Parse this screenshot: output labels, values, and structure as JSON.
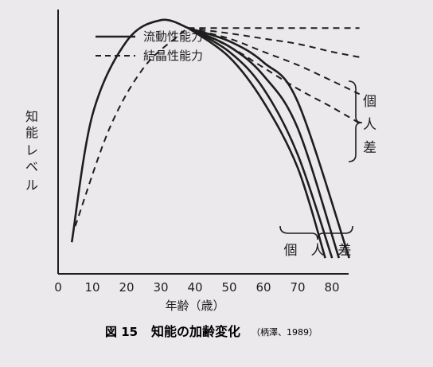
{
  "chart_data": {
    "type": "line",
    "title": "",
    "xlabel": "年齢（歳）",
    "ylabel": [
      "知",
      "能",
      "レ",
      "ベ",
      "ル"
    ],
    "xlim": [
      0,
      90
    ],
    "ylim": [
      0,
      100
    ],
    "x_ticks": [
      "0",
      "10",
      "20",
      "30",
      "40",
      "50",
      "60",
      "70",
      "80"
    ],
    "grid": false,
    "legend_placement": "top-left",
    "series": [
      {
        "name": "流動性能力",
        "style": "solid",
        "x": [
          4,
          10,
          20,
          30,
          38
        ],
        "y": [
          12,
          60,
          88,
          96,
          93
        ]
      },
      {
        "name": "結晶性能力",
        "style": "dashed",
        "x": [
          5,
          15,
          25,
          35,
          38
        ],
        "y": [
          18,
          55,
          78,
          90,
          93
        ]
      }
    ],
    "solid_branches": [
      {
        "x": [
          38,
          50,
          60,
          70,
          78
        ],
        "y": [
          93,
          82,
          65,
          40,
          6
        ]
      },
      {
        "x": [
          38,
          50,
          60,
          70,
          80
        ],
        "y": [
          93,
          84,
          70,
          45,
          6
        ]
      },
      {
        "x": [
          38,
          50,
          60,
          70,
          82
        ],
        "y": [
          93,
          86,
          75,
          55,
          6
        ]
      },
      {
        "x": [
          38,
          50,
          60,
          70,
          85
        ],
        "y": [
          93,
          88,
          80,
          65,
          6
        ]
      }
    ],
    "dashed_branches": [
      {
        "x": [
          38,
          50,
          60,
          70,
          80,
          88
        ],
        "y": [
          93,
          93,
          93,
          93,
          93,
          93
        ]
      },
      {
        "x": [
          38,
          50,
          60,
          70,
          80,
          88
        ],
        "y": [
          93,
          91,
          89,
          87,
          84,
          82
        ]
      },
      {
        "x": [
          38,
          50,
          60,
          70,
          80,
          88
        ],
        "y": [
          93,
          89,
          84,
          79,
          73,
          68
        ]
      },
      {
        "x": [
          38,
          50,
          60,
          70,
          80,
          88
        ],
        "y": [
          93,
          86,
          78,
          70,
          63,
          57
        ]
      }
    ],
    "annotations": {
      "right_bracket_chars": [
        "個",
        "人",
        "差"
      ],
      "bottom_bracket_text": "個　人　差"
    },
    "caption": {
      "number": "図 15",
      "title": "知能の加齢変化",
      "source": "（柄澤、1989）"
    }
  },
  "colors": {
    "ink": "#1e1e1e",
    "paper": "#ece9ec"
  }
}
